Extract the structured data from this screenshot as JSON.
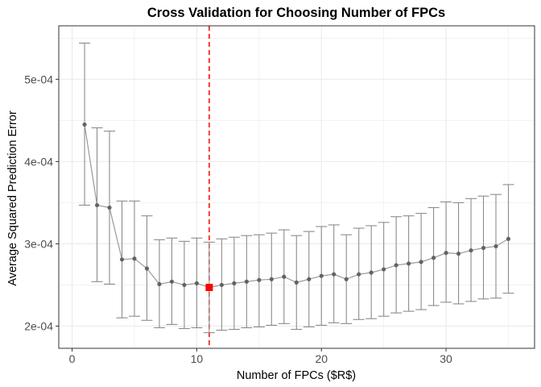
{
  "chart_data": {
    "type": "scatter",
    "title": "Cross Validation for Choosing Number of FPCs",
    "xlabel": "Number of FPCs ($R$)",
    "ylabel": "Average Squared Prediction Error",
    "xlim": [
      -1.07,
      37.1
    ],
    "ylim": [
      0.000173,
      0.000565
    ],
    "xticks": [
      0,
      10,
      20,
      30
    ],
    "xtick_labels": [
      "0",
      "10",
      "20",
      "30"
    ],
    "yticks": [
      0.0002,
      0.0003,
      0.0004,
      0.0005
    ],
    "ytick_labels": [
      "2e-04",
      "3e-04",
      "4e-04",
      "5e-04"
    ],
    "grid": true,
    "x": [
      1,
      2,
      3,
      4,
      5,
      6,
      7,
      8,
      9,
      10,
      11,
      12,
      13,
      14,
      15,
      16,
      17,
      18,
      19,
      20,
      21,
      22,
      23,
      24,
      25,
      26,
      27,
      28,
      29,
      30,
      31,
      32,
      33,
      34,
      35
    ],
    "y": [
      0.000445,
      0.000347,
      0.000344,
      0.000281,
      0.000282,
      0.00027,
      0.000251,
      0.000254,
      0.00025,
      0.000252,
      0.000247,
      0.00025,
      0.000252,
      0.000254,
      0.000256,
      0.000257,
      0.00026,
      0.000253,
      0.000257,
      0.000261,
      0.000263,
      0.000257,
      0.000263,
      0.000265,
      0.000269,
      0.000274,
      0.000276,
      0.000278,
      0.000283,
      0.000289,
      0.000288,
      0.000292,
      0.000295,
      0.000297,
      0.000306
    ],
    "lower": [
      0.000347,
      0.000254,
      0.000251,
      0.00021,
      0.000212,
      0.000207,
      0.000198,
      0.000202,
      0.000197,
      0.000198,
      0.000192,
      0.000195,
      0.000196,
      0.000198,
      0.000199,
      0.000201,
      0.000203,
      0.000196,
      0.000199,
      0.000201,
      0.000204,
      0.000203,
      0.000208,
      0.000209,
      0.000212,
      0.000216,
      0.000218,
      0.00022,
      0.000225,
      0.000229,
      0.000227,
      0.00023,
      0.000233,
      0.000234,
      0.00024
    ],
    "upper": [
      0.000544,
      0.000441,
      0.000437,
      0.000352,
      0.000352,
      0.000334,
      0.000305,
      0.000307,
      0.000303,
      0.000307,
      0.000302,
      0.000306,
      0.000308,
      0.00031,
      0.000311,
      0.000313,
      0.000317,
      0.00031,
      0.000315,
      0.000321,
      0.000323,
      0.000311,
      0.000319,
      0.000322,
      0.000326,
      0.000333,
      0.000334,
      0.000337,
      0.000344,
      0.000351,
      0.00035,
      0.000355,
      0.000358,
      0.00036,
      0.000372
    ],
    "selected": {
      "x": 11,
      "y": 0.000247
    },
    "vline_x": 11,
    "colors": {
      "line": "#999999",
      "point": "#595959",
      "errorbar": "#8c8c8c",
      "selected": "#ff0000",
      "vline": "#ff0000",
      "grid": "#ebebeb",
      "panel_border": "#333333"
    }
  }
}
